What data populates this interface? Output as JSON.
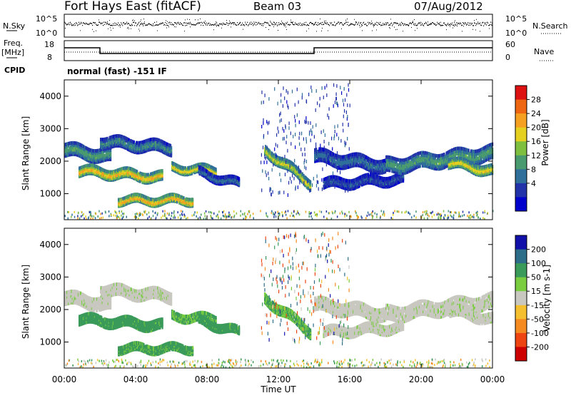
{
  "header": {
    "station": "Fort Hays East (fitACF)",
    "beam": "Beam 03",
    "date": "07/Aug/2012"
  },
  "top_panels": {
    "nsky_label": "N.Sky",
    "nsky_ticks": [
      "10^5",
      "10^0"
    ],
    "nsearch_label": "N.Search",
    "nsearch_ticks": [
      "10^5",
      "10^0"
    ],
    "freq_label_line1": "Freq.",
    "freq_label_line2": "[MHz]",
    "freq_ticks": [
      "18",
      "8"
    ],
    "nave_label": "Nave",
    "nave_ticks": [
      "60",
      "0"
    ],
    "cpid_label": "CPID",
    "cpid_text": "normal (fast) -151 IF"
  },
  "power_panel": {
    "ylabel": "Slant Range [km]",
    "yticks": [
      "4000",
      "3000",
      "2000",
      "1000"
    ],
    "colorbar_label": "Power [dB]",
    "colorbar_ticks": [
      "28",
      "24",
      "20",
      "16",
      "12",
      "8",
      "4"
    ],
    "colorbar_colors": [
      "#0000cc",
      "#2233aa",
      "#2f6f9a",
      "#4a9a70",
      "#7fbf3f",
      "#e5d020",
      "#f5a020",
      "#ee6611",
      "#dd1111"
    ]
  },
  "velocity_panel": {
    "ylabel": "Slant Range [km]",
    "yticks": [
      "4000",
      "3000",
      "2000",
      "1000"
    ],
    "colorbar_label": "Velocity [m s-1]",
    "colorbar_ticks": [
      "200",
      "100",
      "50",
      "15",
      "-15",
      "-50",
      "-100",
      "-200"
    ],
    "colorbar_colors": [
      "#1111aa",
      "#2d6d8a",
      "#3a9a5a",
      "#7acc40",
      "#c8c8c0",
      "#f5c030",
      "#f58a20",
      "#ee4411",
      "#cc0000"
    ]
  },
  "xaxis": {
    "ticks": [
      "00:00",
      "04:00",
      "08:00",
      "12:00",
      "16:00",
      "20:00",
      "00:00"
    ],
    "label": "Time UT"
  },
  "chart_data": {
    "type": "heatmap",
    "title": "Fort Hays East (fitACF)",
    "xlabel": "Time UT",
    "ylabel": "Slant Range [km]",
    "x_range_hours": [
      0,
      24
    ],
    "y_range_km": [
      200,
      4500
    ],
    "frequency_mhz": [
      {
        "start_h": 0.0,
        "end_h": 2.0,
        "value": 15
      },
      {
        "start_h": 2.0,
        "end_h": 14.0,
        "value": 11
      },
      {
        "start_h": 14.0,
        "end_h": 24.0,
        "value": 15
      }
    ],
    "echo_bands": [
      {
        "name": "band-a",
        "t0": 0.0,
        "t1": 2.6,
        "r0": 2400,
        "r1": 2200,
        "width_km": 350,
        "power_db": 14,
        "velocity": 0
      },
      {
        "name": "band-b",
        "t0": 0.8,
        "t1": 5.5,
        "r0": 1750,
        "r1": 1550,
        "width_km": 250,
        "power_db": 24,
        "velocity": 60
      },
      {
        "name": "band-c",
        "t0": 2.0,
        "t1": 6.0,
        "r0": 2650,
        "r1": 2450,
        "width_km": 300,
        "power_db": 12,
        "velocity": 0
      },
      {
        "name": "band-d",
        "t0": 3.0,
        "t1": 7.2,
        "r0": 850,
        "r1": 850,
        "width_km": 200,
        "power_db": 25,
        "velocity": 50
      },
      {
        "name": "band-e",
        "t0": 6.0,
        "t1": 8.5,
        "r0": 1850,
        "r1": 1750,
        "width_km": 200,
        "power_db": 22,
        "velocity": 40
      },
      {
        "name": "band-f",
        "t0": 7.5,
        "t1": 9.8,
        "r0": 1700,
        "r1": 1350,
        "width_km": 200,
        "power_db": 10,
        "velocity": 60
      },
      {
        "name": "band-g",
        "t0": 11.2,
        "t1": 13.8,
        "r0": 2400,
        "r1": 1350,
        "width_km": 250,
        "power_db": 20,
        "velocity": 40
      },
      {
        "name": "band-h",
        "t0": 14.0,
        "t1": 18.0,
        "r0": 2200,
        "r1": 1900,
        "width_km": 350,
        "power_db": 10,
        "velocity": 0
      },
      {
        "name": "band-i",
        "t0": 14.5,
        "t1": 19.0,
        "r0": 1350,
        "r1": 1500,
        "width_km": 250,
        "power_db": 8,
        "velocity": 0
      },
      {
        "name": "band-j",
        "t0": 18.0,
        "t1": 24.0,
        "r0": 1900,
        "r1": 2300,
        "width_km": 400,
        "power_db": 14,
        "velocity": 0
      },
      {
        "name": "band-k",
        "t0": 21.5,
        "t1": 24.0,
        "r0": 2000,
        "r1": 1750,
        "width_km": 250,
        "power_db": 22,
        "velocity": 0
      }
    ]
  }
}
